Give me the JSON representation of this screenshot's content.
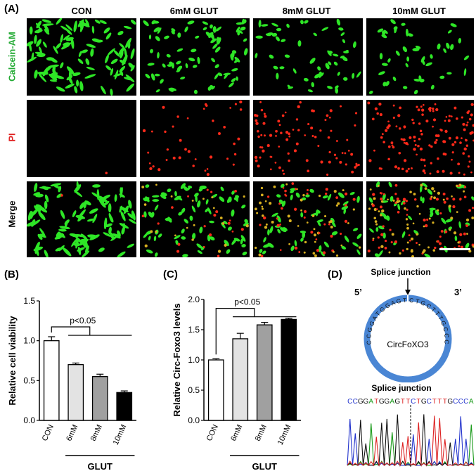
{
  "panel_a": {
    "letter": "(A)",
    "columns": [
      "CON",
      "6mM GLUT",
      "8mM GLUT",
      "10mM GLUT"
    ],
    "rows": [
      {
        "label": "Calcein-AM",
        "color": "#22aa33"
      },
      {
        "label": "PI",
        "color": "#e02020"
      },
      {
        "label": "Merge",
        "color": "#000000"
      }
    ],
    "colors": {
      "green": "#2ee626",
      "red": "#ff2a1a",
      "yellow": "#d8b020"
    }
  },
  "panel_b": {
    "letter": "(B)",
    "chart_data": {
      "type": "bar",
      "categories": [
        "CON",
        "6mM",
        "8mM",
        "10mM"
      ],
      "values": [
        1.0,
        0.7,
        0.55,
        0.35
      ],
      "errors": [
        0.05,
        0.02,
        0.03,
        0.02
      ],
      "fills": [
        "#ffffff",
        "#e3e3e3",
        "#a0a0a0",
        "#000000"
      ],
      "ylabel": "Relative cell viability",
      "xlabel": "GLUT",
      "ylim": [
        0,
        1.5
      ],
      "yticks": [
        "0.0",
        "0.5",
        "1.0",
        "1.5"
      ],
      "annotation": "p<0.05"
    }
  },
  "panel_c": {
    "letter": "(C)",
    "chart_data": {
      "type": "bar",
      "categories": [
        "CON",
        "6mM",
        "8mM",
        "10mM"
      ],
      "values": [
        1.0,
        1.35,
        1.58,
        1.67
      ],
      "errors": [
        0.02,
        0.09,
        0.04,
        0.02
      ],
      "fills": [
        "#ffffff",
        "#e3e3e3",
        "#a0a0a0",
        "#000000"
      ],
      "ylabel": "Relative Circ-Foxo3 levels",
      "xlabel": "GLUT",
      "ylim": [
        0,
        2.0
      ],
      "yticks": [
        "0.0",
        "0.5",
        "1.0",
        "1.5",
        "2.0"
      ],
      "annotation": "p<0.05"
    }
  },
  "panel_d": {
    "letter": "(D)",
    "title_top": "Splice junction",
    "five_prime": "5’",
    "three_prime": "3’",
    "seq_left": "CCGGATGGAGTT",
    "seq_right": "CTGCTTTGCCCA",
    "circ_name": "CircFoXO3",
    "title_bottom": "Splice junction",
    "read_sequence": "CCGGATGGAGTTCTGCTTTGCCCA",
    "circle_color": "#4a86d4"
  }
}
